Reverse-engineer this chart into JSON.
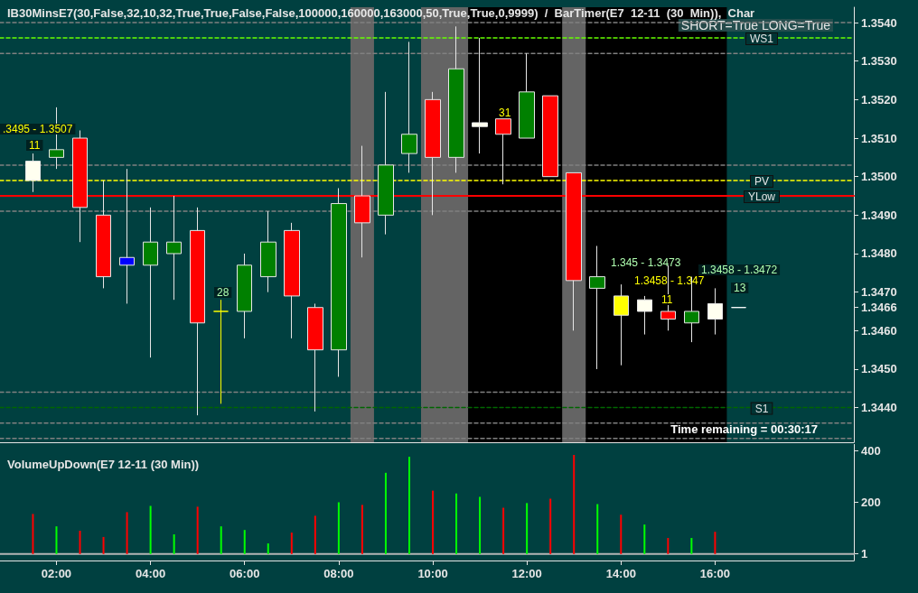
{
  "chart_data": [
    {
      "type": "candlestick",
      "title": "IB30MinsE7(30,False,32,10,32,True,True,False,False,100000,160000,163000,50,True,True,0,9999)  /  BarTimer(E7  12-11  (30  Min)),  Char",
      "x": [
        1.5,
        2,
        2.5,
        3,
        3.5,
        4,
        4.5,
        5,
        5.5,
        6,
        6.5,
        7,
        7.5,
        8,
        8.5,
        9,
        9.5,
        10,
        10.5,
        11,
        11.5,
        12,
        12.5,
        13,
        13.5,
        14,
        14.5,
        15,
        15.5,
        16,
        16.5
      ],
      "ohlc": [
        [
          1.3504,
          1.3506,
          1.3496,
          1.3499
        ],
        [
          1.3505,
          1.3518,
          1.3502,
          1.3507
        ],
        [
          1.351,
          1.3512,
          1.3483,
          1.3492
        ],
        [
          1.349,
          1.3499,
          1.3471,
          1.3474
        ],
        [
          1.3479,
          1.3502,
          1.3467,
          1.3477
        ],
        [
          1.3477,
          1.3492,
          1.3453,
          1.3483
        ],
        [
          1.348,
          1.3495,
          1.3468,
          1.3483
        ],
        [
          1.3486,
          1.3492,
          1.3438,
          1.3462
        ],
        [
          1.3465,
          1.3468,
          1.3441,
          1.3465
        ],
        [
          1.3465,
          1.348,
          1.3458,
          1.3477
        ],
        [
          1.3474,
          1.3491,
          1.347,
          1.3483
        ],
        [
          1.3486,
          1.3488,
          1.3458,
          1.3469
        ],
        [
          1.3466,
          1.3467,
          1.3439,
          1.3455
        ],
        [
          1.3455,
          1.3497,
          1.3448,
          1.3493
        ],
        [
          1.3495,
          1.3508,
          1.3479,
          1.3488
        ],
        [
          1.349,
          1.3522,
          1.3485,
          1.3503
        ],
        [
          1.3506,
          1.3535,
          1.3501,
          1.3511
        ],
        [
          1.352,
          1.3522,
          1.349,
          1.3505
        ],
        [
          1.3505,
          1.3539,
          1.3501,
          1.3528
        ],
        [
          1.3513,
          1.3536,
          1.3506,
          1.3514
        ],
        [
          1.3515,
          1.3515,
          1.3498,
          1.3511
        ],
        [
          1.351,
          1.3532,
          1.351,
          1.3522
        ],
        [
          1.3521,
          1.3521,
          1.35,
          1.35
        ],
        [
          1.3501,
          1.3501,
          1.346,
          1.3473
        ],
        [
          1.3471,
          1.3482,
          1.345,
          1.3474
        ],
        [
          1.3469,
          1.3472,
          1.3451,
          1.3464
        ],
        [
          1.3465,
          1.3469,
          1.3459,
          1.3468
        ],
        [
          1.3465,
          1.3477,
          1.346,
          1.3463
        ],
        [
          1.3462,
          1.3474,
          1.3457,
          1.3465
        ],
        [
          1.3467,
          1.3471,
          1.3459,
          1.3463
        ],
        [
          1.3466,
          1.3466,
          1.3466,
          1.3466
        ]
      ],
      "colors": [
        "#fffff0",
        "#008000",
        "#ff0000",
        "#ff0000",
        "#0000ff",
        "#008000",
        "#008000",
        "#ff0000",
        "#ffff00",
        "#008000",
        "#008000",
        "#ff0000",
        "#ff0000",
        "#008000",
        "#ff0000",
        "#008000",
        "#008000",
        "#ff0000",
        "#008000",
        "#fffff0",
        "#ff0000",
        "#008000",
        "#ff0000",
        "#ff0000",
        "#008000",
        "#ffff00",
        "#fffff0",
        "#ff0000",
        "#008000",
        "#fffff0",
        "#ffffff"
      ],
      "xlim": [
        0.8,
        18.95
      ],
      "ylim": [
        1.3431,
        1.3544
      ],
      "yticks": [
        {
          "value": 1.344,
          "label": "1.3440"
        },
        {
          "value": 1.345,
          "label": "1.3450"
        },
        {
          "value": 1.346,
          "label": "1.3460"
        },
        {
          "value": 1.3466,
          "label": "1.3466"
        },
        {
          "value": 1.347,
          "label": "1.3470"
        },
        {
          "value": 1.348,
          "label": "1.3480"
        },
        {
          "value": 1.349,
          "label": "1.3490"
        },
        {
          "value": 1.35,
          "label": "1.3500"
        },
        {
          "value": 1.351,
          "label": "1.3510"
        },
        {
          "value": 1.352,
          "label": "1.3520"
        },
        {
          "value": 1.353,
          "label": "1.3530"
        },
        {
          "value": 1.354,
          "label": "1.3540"
        }
      ],
      "tick_labels": "y",
      "bands": [
        {
          "axis": "x",
          "from": 10.75,
          "to": 16.25,
          "color": "#000000"
        },
        {
          "axis": "x",
          "from": 8.25,
          "to": 8.75,
          "color": "#646464"
        },
        {
          "axis": "x",
          "from": 9.75,
          "to": 10.75,
          "color": "#646464"
        },
        {
          "axis": "x",
          "from": 12.75,
          "to": 13.25,
          "color": "#646464"
        }
      ],
      "ref_lines": [
        {
          "axis": "y",
          "value": 1.354,
          "color": "#808080",
          "line_style": "dashed"
        },
        {
          "axis": "y",
          "value": 1.3532,
          "color": "#808080",
          "line_style": "dashed"
        },
        {
          "axis": "y",
          "value": 1.3503,
          "color": "#808080",
          "line_style": "dashed"
        },
        {
          "axis": "y",
          "value": 1.3491,
          "color": "#808080",
          "line_style": "dashed"
        },
        {
          "axis": "y",
          "value": 1.3444,
          "color": "#808080",
          "line_style": "dashed"
        },
        {
          "axis": "y",
          "value": 1.3436,
          "color": "#808080",
          "line_style": "dashed"
        },
        {
          "axis": "y",
          "value": 1.3432,
          "color": "#808080",
          "line_style": "dashed"
        },
        {
          "axis": "y",
          "value": 1.3536,
          "label": "WS1",
          "color": "#66ff00",
          "line_style": "dashed"
        },
        {
          "axis": "y",
          "value": 1.3499,
          "label": "PV",
          "color": "#ffff00",
          "line_style": "dashed"
        },
        {
          "axis": "y",
          "value": 1.3495,
          "label": "YLow",
          "color": "#ff0000",
          "line_style": "solid"
        },
        {
          "axis": "y",
          "value": 1.344,
          "label": "S1",
          "color": "#006600",
          "line_style": "dashed"
        }
      ],
      "annotations": [
        "SHORT=True LONG=True",
        "Time remaining = 00:30:17",
        ".3495 - 1.3507",
        "1.345 - 1.3473",
        "1.3458 - 1.347",
        "1.3458 - 1.3472",
        "11",
        "28",
        "31",
        "11",
        "13"
      ]
    },
    {
      "type": "bar",
      "title": "VolumeUpDown(E7 12-11 (30 Min))",
      "x": [
        1.5,
        2,
        2.5,
        3,
        3.5,
        4,
        4.5,
        5,
        5.5,
        6,
        6.5,
        7,
        7.5,
        8,
        8.5,
        9,
        9.5,
        10,
        10.5,
        11,
        11.5,
        12,
        12.5,
        13,
        13.5,
        14,
        14.5,
        15,
        15.5,
        16
      ],
      "values": [
        155,
        107,
        90,
        66,
        162,
        186,
        76,
        183,
        107,
        93,
        41,
        83,
        148,
        200,
        190,
        314,
        376,
        245,
        234,
        221,
        179,
        197,
        214,
        383,
        193,
        152,
        114,
        62,
        62,
        86
      ],
      "colors": [
        "#ff0000",
        "#00ff00",
        "#ff0000",
        "#ff0000",
        "#ff0000",
        "#00ff00",
        "#00ff00",
        "#ff0000",
        "#00ff00",
        "#00ff00",
        "#00ff00",
        "#ff0000",
        "#ff0000",
        "#00ff00",
        "#ff0000",
        "#00ff00",
        "#00ff00",
        "#ff0000",
        "#00ff00",
        "#00ff00",
        "#ff0000",
        "#00ff00",
        "#ff0000",
        "#ff0000",
        "#00ff00",
        "#ff0000",
        "#00ff00",
        "#ff0000",
        "#00ff00",
        "#ff0000"
      ],
      "xlim": [
        0.8,
        18.95
      ],
      "ylim": [
        -25,
        425
      ],
      "yticks": [
        1,
        200,
        400
      ],
      "xticks": [
        {
          "value": 2,
          "label": "02:00"
        },
        {
          "value": 4,
          "label": "04:00"
        },
        {
          "value": 6,
          "label": "06:00"
        },
        {
          "value": 8,
          "label": "08:00"
        },
        {
          "value": 10,
          "label": "10:00"
        },
        {
          "value": 12,
          "label": "12:00"
        },
        {
          "value": 14,
          "label": "14:00"
        },
        {
          "value": 16,
          "label": "16:00"
        }
      ],
      "ref_lines": [
        {
          "axis": "y",
          "value": 0,
          "color": "#b4b4b4",
          "line_style": "solid"
        }
      ]
    }
  ]
}
